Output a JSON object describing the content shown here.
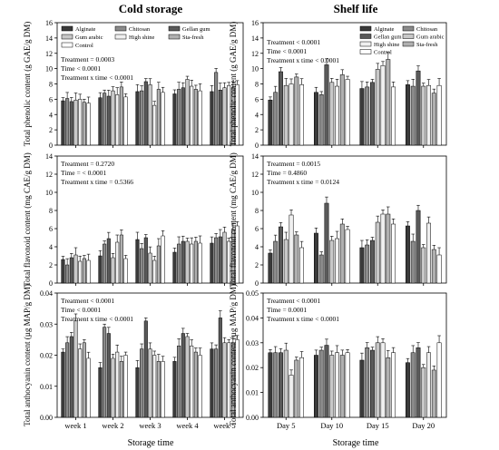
{
  "figure": {
    "col_titles": [
      "Cold storage",
      "Shelf life"
    ],
    "x_title": "Storage time",
    "bar_colors": [
      "#3a3a3a",
      "#8a8a8a",
      "#5a5a5a",
      "#c8c8c8",
      "#f0f0f0",
      "#b0b0b0",
      "#ffffff"
    ]
  },
  "chart_data": [
    {
      "type": "bar",
      "panel": "cold-phenolic",
      "ylabel": "Total phenolic content (g GAE/g DM)",
      "ylim": [
        0,
        16
      ],
      "yticks": [
        0,
        2,
        4,
        6,
        8,
        10,
        12,
        14,
        16
      ],
      "categories": [
        "week 1",
        "week 2",
        "week 3",
        "week 4",
        "week 5"
      ],
      "show_xlabels": false,
      "legend": [
        "Alginate",
        "Chitosan",
        "Gellan gum",
        "Gum arabic",
        "High shine",
        "Sta-fresh",
        "Control"
      ],
      "annotation": [
        "Treatment = 0.0003",
        "Time < 0.0001",
        "Treatment x time < 0.0001"
      ],
      "series": [
        {
          "name": "Alginate",
          "values": [
            5.8,
            6.2,
            7.0,
            6.7,
            7.0
          ]
        },
        {
          "name": "Chitosan",
          "values": [
            6.1,
            6.8,
            7.1,
            7.3,
            9.5
          ]
        },
        {
          "name": "Gellan gum",
          "values": [
            5.7,
            6.4,
            8.3,
            7.5,
            7.2
          ]
        },
        {
          "name": "Gum arabic",
          "values": [
            5.9,
            7.1,
            7.9,
            8.6,
            7.5
          ]
        },
        {
          "name": "High shine",
          "values": [
            6.0,
            6.6,
            5.2,
            7.7,
            7.8
          ]
        },
        {
          "name": "Sta-fresh",
          "values": [
            5.6,
            7.6,
            7.3,
            7.3,
            7.5
          ]
        },
        {
          "name": "Control",
          "values": [
            5.5,
            6.3,
            6.9,
            7.1,
            7.9
          ]
        }
      ]
    },
    {
      "type": "bar",
      "panel": "shelf-phenolic",
      "ylabel": "Total phenolic content (g GAE/g DM)",
      "ylim": [
        0,
        16
      ],
      "yticks": [
        0,
        2,
        4,
        6,
        8,
        10,
        12,
        14,
        16
      ],
      "categories": [
        "Day 5",
        "Day 10",
        "Day 15",
        "Day 20"
      ],
      "show_xlabels": false,
      "legend": [
        "Alginate",
        "Chitosan",
        "Gellan gum",
        "Gum arabic",
        "High shine",
        "Sta-fresh",
        "Control"
      ],
      "annotation": [
        "Treatment < 0.0001",
        "Time < 0.0001",
        "Treatment x time < 0.0001"
      ],
      "series": [
        {
          "name": "Alginate",
          "values": [
            5.9,
            6.9,
            7.4,
            7.9
          ]
        },
        {
          "name": "Chitosan",
          "values": [
            6.9,
            6.6,
            7.6,
            7.7
          ]
        },
        {
          "name": "Gellan gum",
          "values": [
            9.6,
            10.5,
            8.2,
            9.7
          ]
        },
        {
          "name": "Gum arabic",
          "values": [
            7.8,
            8.2,
            9.9,
            7.7
          ]
        },
        {
          "name": "High shine",
          "values": [
            8.0,
            7.7,
            10.4,
            7.8
          ]
        },
        {
          "name": "Sta-fresh",
          "values": [
            8.9,
            9.2,
            11.2,
            6.8
          ]
        },
        {
          "name": "Control",
          "values": [
            7.9,
            8.6,
            7.6,
            7.8
          ]
        }
      ]
    },
    {
      "type": "bar",
      "panel": "cold-flavonoid",
      "ylabel": "Total flavonoid content (mg CAE/g DM)",
      "ylim": [
        0,
        14
      ],
      "yticks": [
        0,
        2,
        4,
        6,
        8,
        10,
        12,
        14
      ],
      "categories": [
        "week 1",
        "week 2",
        "week 3",
        "week 4",
        "week 5"
      ],
      "show_xlabels": false,
      "annotation": [
        "Treatment = 0.2720",
        "Time = < 0.0001",
        "Treatment x time = 0.5366"
      ],
      "series": [
        {
          "name": "Alginate",
          "values": [
            2.6,
            3.0,
            4.8,
            3.4,
            4.4
          ]
        },
        {
          "name": "Chitosan",
          "values": [
            2.0,
            4.3,
            3.8,
            4.3,
            5.0
          ]
        },
        {
          "name": "Gellan gum",
          "values": [
            2.8,
            4.9,
            5.0,
            4.6,
            5.1
          ]
        },
        {
          "name": "Gum arabic",
          "values": [
            3.1,
            2.8,
            3.3,
            4.6,
            5.6
          ]
        },
        {
          "name": "High shine",
          "values": [
            2.4,
            4.5,
            2.5,
            4.3,
            4.6
          ]
        },
        {
          "name": "Sta-fresh",
          "values": [
            2.7,
            5.3,
            4.1,
            4.6,
            5.9
          ]
        },
        {
          "name": "Control",
          "values": [
            2.5,
            2.7,
            5.2,
            4.4,
            6.3
          ]
        }
      ]
    },
    {
      "type": "bar",
      "panel": "shelf-flavonoid",
      "ylabel": "Total flavonoid content (mg CAE/g DM)",
      "ylim": [
        0,
        14
      ],
      "yticks": [
        0,
        2,
        4,
        6,
        8,
        10,
        12,
        14
      ],
      "categories": [
        "Day 5",
        "Day 10",
        "Day 15",
        "Day 20"
      ],
      "show_xlabels": false,
      "annotation": [
        "Treatment = 0.0015",
        "Time = 0.4860",
        "Treatment x time = 0.0124"
      ],
      "series": [
        {
          "name": "Alginate",
          "values": [
            3.3,
            5.5,
            3.9,
            6.3
          ]
        },
        {
          "name": "Chitosan",
          "values": [
            4.6,
            3.1,
            4.2,
            4.6
          ]
        },
        {
          "name": "Gellan gum",
          "values": [
            6.2,
            8.8,
            4.7,
            8.0
          ]
        },
        {
          "name": "Gum arabic",
          "values": [
            4.8,
            4.7,
            6.7,
            3.9
          ]
        },
        {
          "name": "High shine",
          "values": [
            7.5,
            4.9,
            7.6,
            6.6
          ]
        },
        {
          "name": "Sta-fresh",
          "values": [
            5.3,
            6.5,
            7.6,
            3.7
          ]
        },
        {
          "name": "Control",
          "values": [
            3.9,
            5.9,
            6.5,
            3.1
          ]
        }
      ]
    },
    {
      "type": "bar",
      "panel": "cold-anthocyanin",
      "ylabel": "Total anthocyanin content (µg MAP/g DM)",
      "ylim": [
        0,
        0.04
      ],
      "yticks": [
        0,
        0.01,
        0.02,
        0.03,
        0.04
      ],
      "ytick_labels": [
        "0.00",
        "0.01",
        "0.02",
        "0.03",
        "0.04"
      ],
      "categories": [
        "week 1",
        "week 2",
        "week 3",
        "week 4",
        "week 5"
      ],
      "show_xlabels": true,
      "annotation": [
        "Treatment < 0.0001",
        "Time < 0.0001",
        "Treatment x time < 0.0001"
      ],
      "series": [
        {
          "name": "Alginate",
          "values": [
            0.021,
            0.016,
            0.016,
            0.018,
            0.022
          ]
        },
        {
          "name": "Chitosan",
          "values": [
            0.024,
            0.029,
            0.022,
            0.023,
            0.022
          ]
        },
        {
          "name": "Gellan gum",
          "values": [
            0.026,
            0.027,
            0.031,
            0.027,
            0.032
          ]
        },
        {
          "name": "Gum arabic",
          "values": [
            0.031,
            0.019,
            0.022,
            0.026,
            0.024
          ]
        },
        {
          "name": "High shine",
          "values": [
            0.022,
            0.021,
            0.02,
            0.023,
            0.024
          ]
        },
        {
          "name": "Sta-fresh",
          "values": [
            0.024,
            0.018,
            0.018,
            0.021,
            0.024
          ]
        },
        {
          "name": "Control",
          "values": [
            0.019,
            0.02,
            0.018,
            0.02,
            0.025
          ]
        }
      ]
    },
    {
      "type": "bar",
      "panel": "shelf-anthocyanin",
      "ylabel": "Total anthocyanin content (µg MAP/g DM)",
      "ylim": [
        0,
        0.05
      ],
      "yticks": [
        0,
        0.01,
        0.02,
        0.03,
        0.04,
        0.05
      ],
      "ytick_labels": [
        "0.00",
        "0.01",
        "0.02",
        "0.03",
        "0.04",
        "0.05"
      ],
      "categories": [
        "Day 5",
        "Day 10",
        "Day 15",
        "Day 20"
      ],
      "show_xlabels": true,
      "annotation": [
        "Treatment < 0.0001",
        "Time = 0.0001",
        "Treatment x time < 0.0001"
      ],
      "series": [
        {
          "name": "Alginate",
          "values": [
            0.026,
            0.025,
            0.023,
            0.022
          ]
        },
        {
          "name": "Chitosan",
          "values": [
            0.026,
            0.027,
            0.028,
            0.026
          ]
        },
        {
          "name": "Gellan gum",
          "values": [
            0.026,
            0.029,
            0.027,
            0.028
          ]
        },
        {
          "name": "Gum arabic",
          "values": [
            0.027,
            0.025,
            0.03,
            0.02
          ]
        },
        {
          "name": "High shine",
          "values": [
            0.017,
            0.026,
            0.03,
            0.026
          ]
        },
        {
          "name": "Sta-fresh",
          "values": [
            0.023,
            0.025,
            0.024,
            0.019
          ]
        },
        {
          "name": "Control",
          "values": [
            0.024,
            0.026,
            0.026,
            0.03
          ]
        }
      ]
    }
  ]
}
